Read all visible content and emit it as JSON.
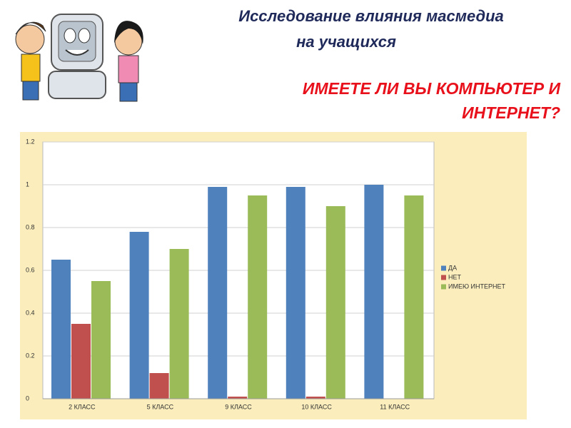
{
  "header": {
    "title_lines": [
      "Исследование влияния масмедиа",
      "на учащихся"
    ],
    "question_lines": [
      "ИМЕЕТЕ ЛИ ВЫ КОМПЬЮТЕР И",
      "ИНТЕРНЕТ?"
    ]
  },
  "chart_data": {
    "type": "bar",
    "categories": [
      "2 КЛАСС",
      "5 КЛАСС",
      "9 КЛАСС",
      "10 КЛАСС",
      "11 КЛАСС"
    ],
    "series": [
      {
        "name": "ДА",
        "color": "#4f81bd",
        "values": [
          0.65,
          0.78,
          0.99,
          0.99,
          1.0
        ]
      },
      {
        "name": "НЕТ",
        "color": "#c0504d",
        "values": [
          0.35,
          0.12,
          0.01,
          0.01,
          0
        ]
      },
      {
        "name": "ИМЕЮ ИНТЕРНЕТ",
        "color": "#9bbb59",
        "values": [
          0.55,
          0.7,
          0.95,
          0.9,
          0.95
        ]
      }
    ],
    "ylim": [
      0,
      1.2
    ],
    "yticks": [
      0,
      0.2,
      0.4,
      0.6,
      0.8,
      1,
      1.2
    ],
    "grid": true,
    "legend": "right"
  }
}
